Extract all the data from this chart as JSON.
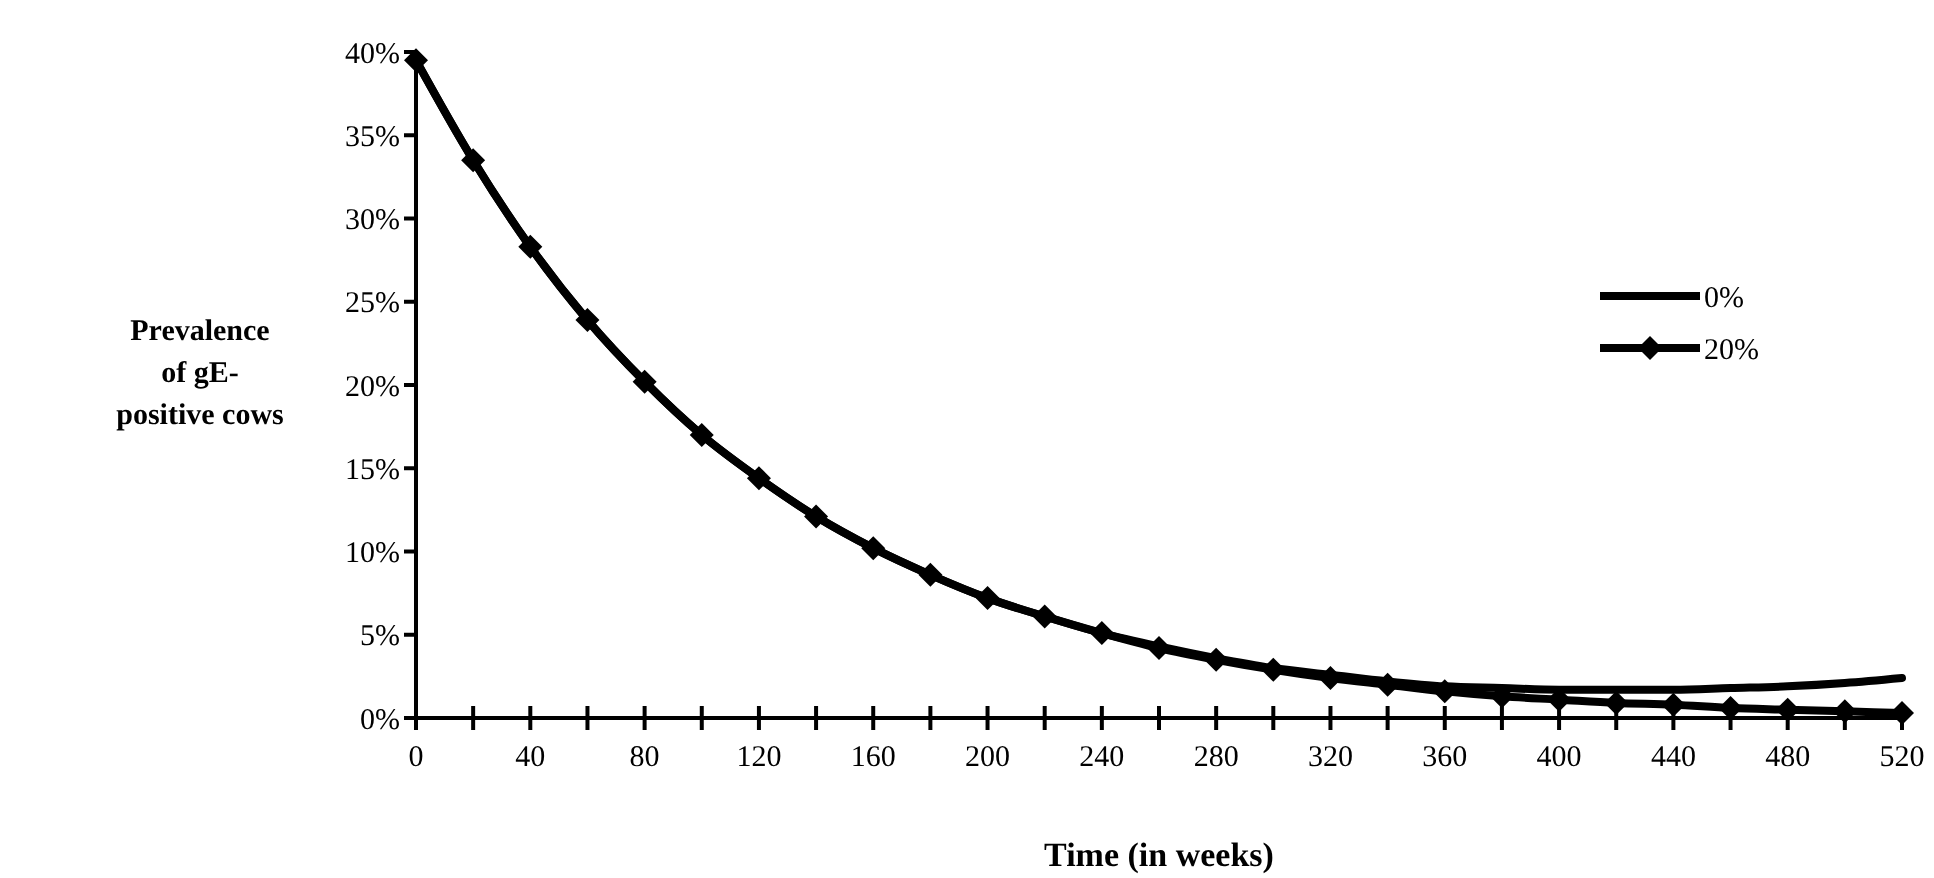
{
  "chart_data": {
    "type": "line",
    "xlabel": "Time (in weeks)",
    "ylabel": "Prevalence\nof gE-\npositive cows",
    "x": [
      0,
      20,
      40,
      60,
      80,
      100,
      120,
      140,
      160,
      180,
      200,
      220,
      240,
      260,
      280,
      300,
      320,
      340,
      360,
      380,
      400,
      420,
      440,
      460,
      480,
      500,
      520
    ],
    "series": [
      {
        "name": "0%",
        "color": "#000000",
        "marker": "none",
        "values": [
          39.5,
          33.5,
          28.3,
          23.9,
          20.2,
          17.0,
          14.4,
          12.1,
          10.2,
          8.6,
          7.2,
          6.1,
          5.1,
          4.3,
          3.6,
          3.0,
          2.6,
          2.2,
          1.9,
          1.8,
          1.7,
          1.7,
          1.7,
          1.8,
          1.9,
          2.1,
          2.4
        ]
      },
      {
        "name": "20%",
        "color": "#000000",
        "marker": "diamond",
        "values": [
          39.5,
          33.5,
          28.3,
          23.9,
          20.2,
          17.0,
          14.4,
          12.1,
          10.2,
          8.6,
          7.2,
          6.1,
          5.1,
          4.2,
          3.5,
          2.9,
          2.4,
          2.0,
          1.6,
          1.3,
          1.1,
          0.9,
          0.8,
          0.6,
          0.5,
          0.4,
          0.3
        ]
      }
    ],
    "xlim": [
      0,
      520
    ],
    "xticks": [
      0,
      {
        "value": 20,
        "label": null
      },
      40,
      {
        "value": 60,
        "label": null
      },
      80,
      {
        "value": 100,
        "label": null
      },
      120,
      {
        "value": 140,
        "label": null
      },
      160,
      {
        "value": 180,
        "label": null
      },
      200,
      {
        "value": 220,
        "label": null
      },
      240,
      {
        "value": 260,
        "label": null
      },
      280,
      {
        "value": 300,
        "label": null
      },
      320,
      {
        "value": 340,
        "label": null
      },
      360,
      {
        "value": 380,
        "label": null
      },
      400,
      {
        "value": 420,
        "label": null
      },
      440,
      {
        "value": 460,
        "label": null
      },
      480,
      {
        "value": 500,
        "label": null
      },
      520
    ],
    "ylim": [
      0,
      40
    ],
    "yticks": [
      {
        "value": 0,
        "label": "0%"
      },
      {
        "value": 5,
        "label": "5%"
      },
      {
        "value": 10,
        "label": "10%"
      },
      {
        "value": 15,
        "label": "15%"
      },
      {
        "value": 20,
        "label": "20%"
      },
      {
        "value": 25,
        "label": "25%"
      },
      {
        "value": 30,
        "label": "30%"
      },
      {
        "value": 35,
        "label": "35%"
      },
      {
        "value": 40,
        "label": "40%"
      }
    ],
    "grid": false,
    "legend": "right",
    "line_style": "solid"
  }
}
